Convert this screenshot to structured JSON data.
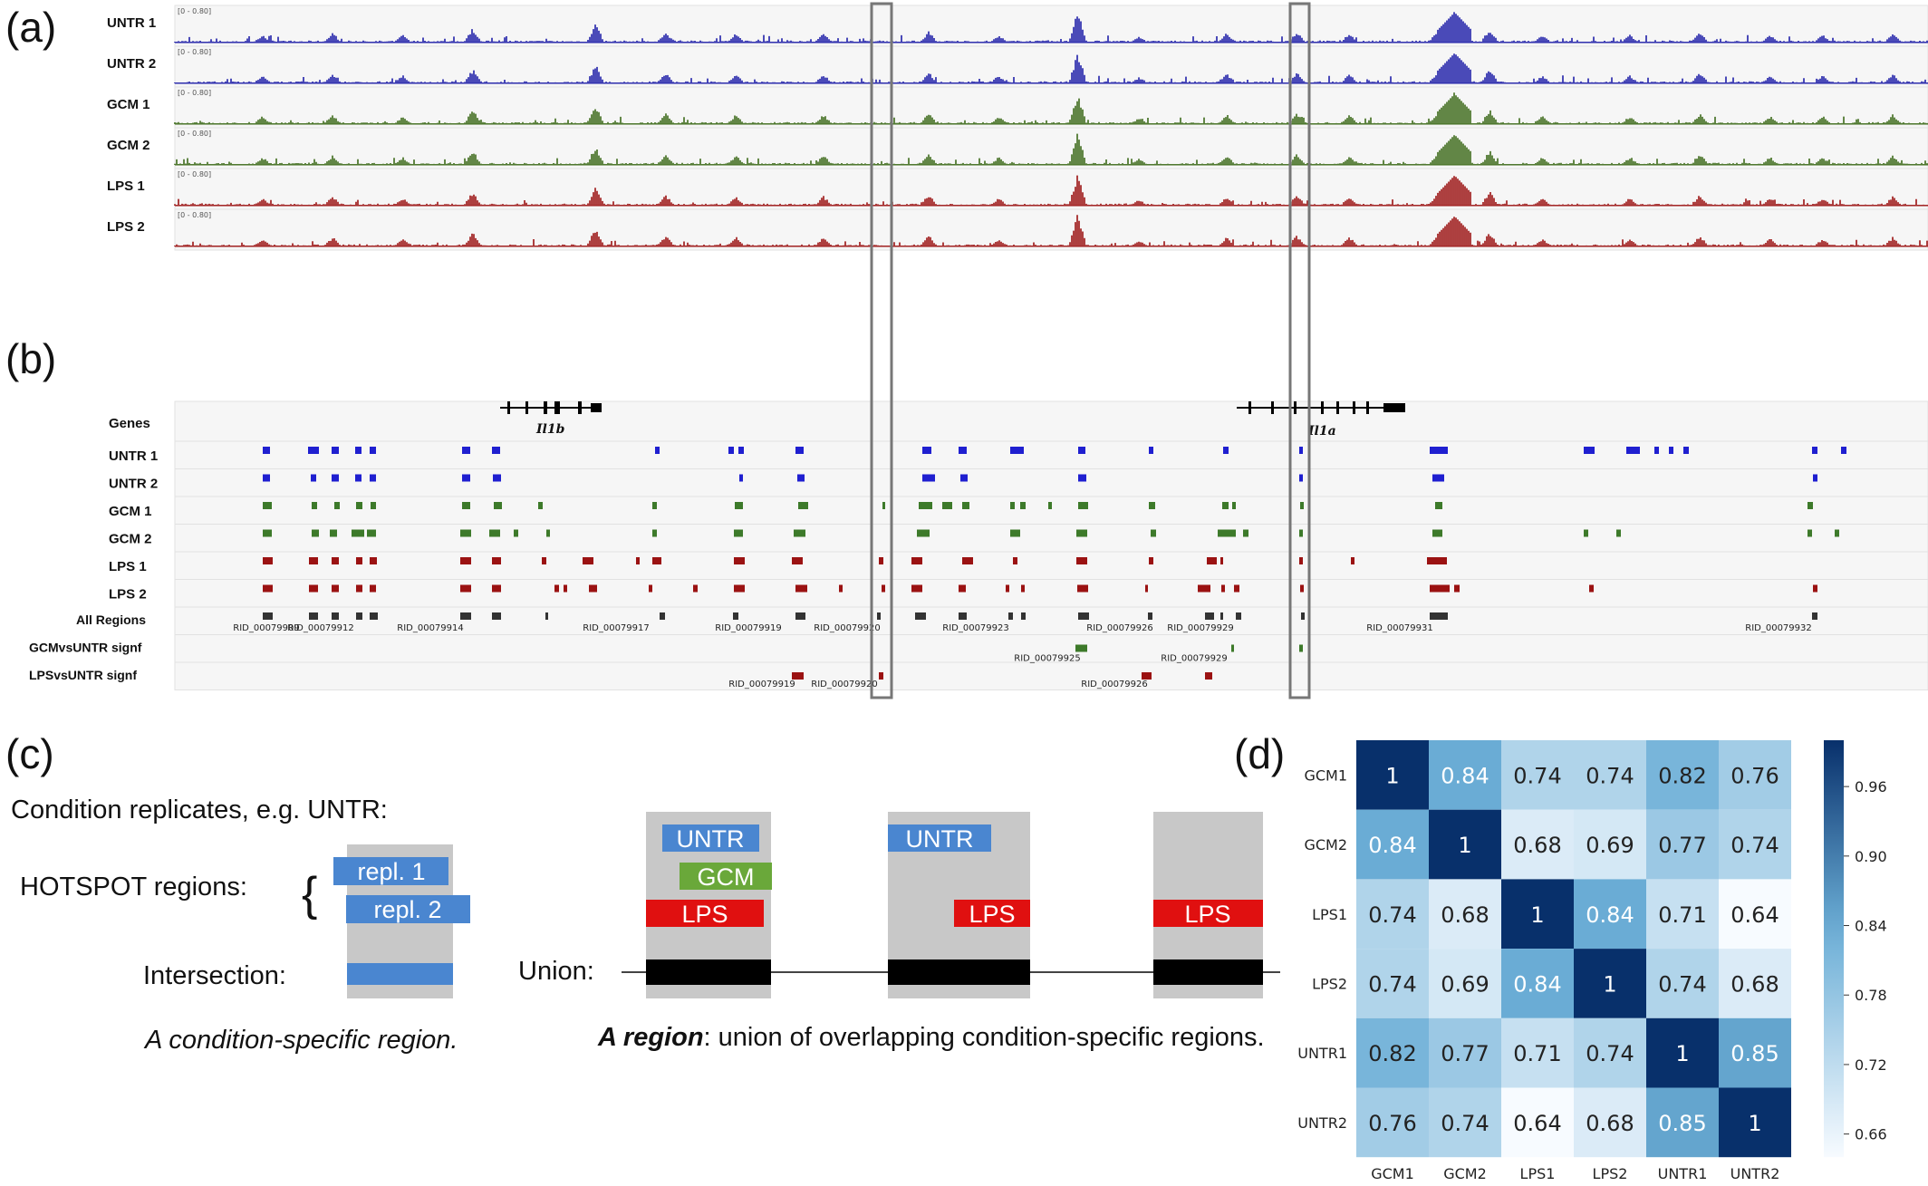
{
  "panel_labels": [
    "(a)",
    "(b)",
    "(c)",
    "(d)"
  ],
  "panel_a": {
    "range_label": "[0 - 0.80]",
    "tracks": [
      {
        "label": "UNTR 1",
        "color": "#1f1fa8"
      },
      {
        "label": "UNTR 2",
        "color": "#1f1fa8"
      },
      {
        "label": "GCM 1",
        "color": "#3d6b1a"
      },
      {
        "label": "GCM 2",
        "color": "#3d6b1a"
      },
      {
        "label": "LPS 1",
        "color": "#9b1212"
      },
      {
        "label": "LPS 2",
        "color": "#9b1212"
      }
    ]
  },
  "panel_b": {
    "genes_label": "Genes",
    "genes": [
      "Il1b",
      "Il1a"
    ],
    "region_tracks": [
      {
        "label": "UNTR 1",
        "color": "#1f1fd0"
      },
      {
        "label": "UNTR 2",
        "color": "#1f1fd0"
      },
      {
        "label": "GCM 1",
        "color": "#3d7a2a"
      },
      {
        "label": "GCM 2",
        "color": "#3d7a2a"
      },
      {
        "label": "LPS 1",
        "color": "#9b1212"
      },
      {
        "label": "LPS 2",
        "color": "#9b1212"
      },
      {
        "label": "All Regions",
        "color": "#333333"
      },
      {
        "label": "GCMvsUNTR signf",
        "color": "#3d7a2a"
      },
      {
        "label": "LPSvsUNTR signf",
        "color": "#9b1212"
      }
    ],
    "all_region_ids": [
      "RID_00079909",
      "RID_00079912",
      "RID_00079914",
      "RID_00079917",
      "RID_00079919",
      "RID_00079920",
      "RID_00079923",
      "RID_00079926",
      "RID_00079929",
      "RID_00079931",
      "RID_00079932"
    ],
    "gcm_signf_ids": [
      "RID_00079925",
      "RID_00079929"
    ],
    "lps_signf_ids": [
      "RID_00079919",
      "RID_00079920",
      "RID_00079926"
    ]
  },
  "panel_c": {
    "heading": "Condition replicates, e.g. UNTR:",
    "hotspot_label": "HOTSPOT regions:",
    "brace": "{",
    "repl1": "repl. 1",
    "repl2": "repl. 2",
    "intersection_label": "Intersection:",
    "caption_left": "A condition-specific region.",
    "union_label": "Union:",
    "box_labels": {
      "untr": "UNTR",
      "gcm": "GCM",
      "lps": "LPS"
    },
    "caption_right_bold": "A region",
    "caption_right_rest": ": union of overlapping condition-specific regions.",
    "colors": {
      "untr": "#4a86d0",
      "gcm": "#6aa83a",
      "lps": "#e01010",
      "box": "#c8c8c8",
      "union": "#000000"
    }
  },
  "chart_data": {
    "type": "heatmap",
    "rows": [
      "GCM1",
      "GCM2",
      "LPS1",
      "LPS2",
      "UNTR1",
      "UNTR2"
    ],
    "columns": [
      "GCM1",
      "GCM2",
      "LPS1",
      "LPS2",
      "UNTR1",
      "UNTR2"
    ],
    "values": [
      [
        1,
        0.84,
        0.74,
        0.74,
        0.82,
        0.76
      ],
      [
        0.84,
        1,
        0.68,
        0.69,
        0.77,
        0.74
      ],
      [
        0.74,
        0.68,
        1,
        0.84,
        0.71,
        0.64
      ],
      [
        0.74,
        0.69,
        0.84,
        1,
        0.74,
        0.68
      ],
      [
        0.82,
        0.77,
        0.71,
        0.74,
        1,
        0.85
      ],
      [
        0.76,
        0.74,
        0.64,
        0.68,
        0.85,
        1
      ]
    ],
    "colorbar_ticks": [
      "0.96",
      "0.90",
      "0.84",
      "0.78",
      "0.72",
      "0.66"
    ],
    "colorbar_range": [
      0.64,
      1.0
    ],
    "colormap": {
      "low": "#f7fbff",
      "high": "#08306b"
    }
  }
}
